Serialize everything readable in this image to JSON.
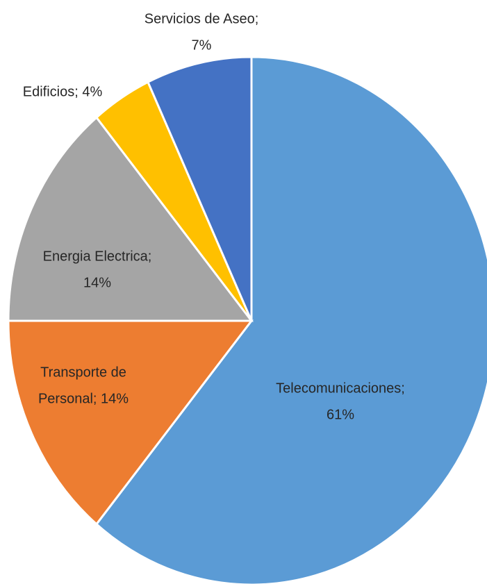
{
  "chart_data": {
    "type": "pie",
    "categories": [
      "Telecomunicaciones",
      "Transporte de Personal",
      "Energia Electrica",
      "Edificios",
      "Servicios de Aseo"
    ],
    "values": [
      61,
      14,
      14,
      4,
      7
    ],
    "value_labels": [
      [
        "Telecomunicaciones;",
        "61%"
      ],
      [
        "Transporte de",
        "Personal; 14%"
      ],
      [
        "Energia Electrica;",
        "14%"
      ],
      [
        "Edificios; 4%"
      ],
      [
        "Servicios de Aseo;",
        "7%"
      ]
    ],
    "colors": [
      "#5b9bd5",
      "#ed7d31",
      "#a5a5a5",
      "#ffc000",
      "#4472c4"
    ]
  }
}
